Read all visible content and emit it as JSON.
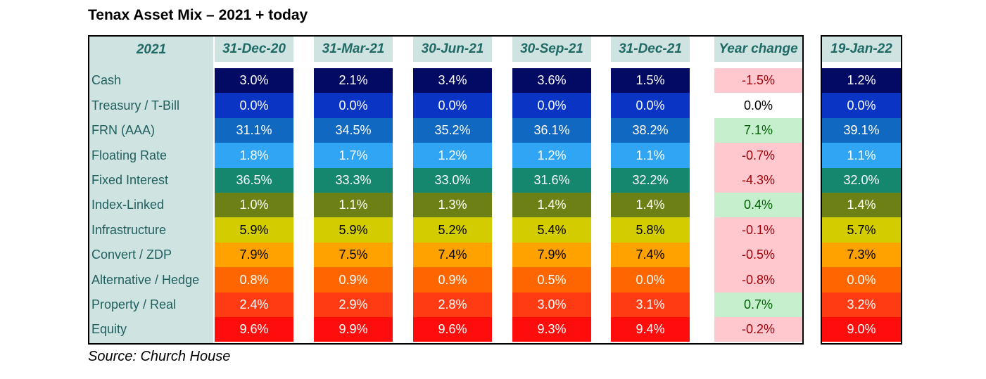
{
  "title": "Tenax Asset Mix – 2021 + today",
  "source": "Source: Church House",
  "year_label": "2021",
  "columns": [
    "31-Dec-20",
    "31-Mar-21",
    "30-Jun-21",
    "30-Sep-21",
    "31-Dec-21"
  ],
  "change_header": "Year change",
  "today_header": "19-Jan-22",
  "rows": [
    {
      "label": "Cash",
      "values": [
        "3.0%",
        "2.1%",
        "3.4%",
        "3.6%",
        "1.5%"
      ],
      "change": "-1.5%",
      "today": "1.2%",
      "color": "#020a63",
      "text_color": "#ffffff",
      "trend": "neg"
    },
    {
      "label": "Treasury / T-Bill",
      "values": [
        "0.0%",
        "0.0%",
        "0.0%",
        "0.0%",
        "0.0%"
      ],
      "change": "0.0%",
      "today": "0.0%",
      "color": "#0a35c4",
      "text_color": "#ffffff",
      "trend": "zero"
    },
    {
      "label": "FRN (AAA)",
      "values": [
        "31.1%",
        "34.5%",
        "35.2%",
        "36.1%",
        "38.2%"
      ],
      "change": "7.1%",
      "today": "39.1%",
      "color": "#1068c0",
      "text_color": "#ffffff",
      "trend": "pos"
    },
    {
      "label": "Floating Rate",
      "values": [
        "1.8%",
        "1.7%",
        "1.2%",
        "1.2%",
        "1.1%"
      ],
      "change": "-0.7%",
      "today": "1.1%",
      "color": "#30a5f4",
      "text_color": "#ffffff",
      "trend": "neg"
    },
    {
      "label": "Fixed Interest",
      "values": [
        "36.5%",
        "33.3%",
        "33.0%",
        "31.6%",
        "32.2%"
      ],
      "change": "-4.3%",
      "today": "32.0%",
      "color": "#14876e",
      "text_color": "#ffffff",
      "trend": "neg"
    },
    {
      "label": "Index-Linked",
      "values": [
        "1.0%",
        "1.1%",
        "1.3%",
        "1.4%",
        "1.4%"
      ],
      "change": "0.4%",
      "today": "1.4%",
      "color": "#6d8015",
      "text_color": "#ffffff",
      "trend": "pos"
    },
    {
      "label": "Infrastructure",
      "values": [
        "5.9%",
        "5.9%",
        "5.2%",
        "5.4%",
        "5.8%"
      ],
      "change": "-0.1%",
      "today": "5.7%",
      "color": "#d2cc00",
      "text_color": "#000000",
      "trend": "neg"
    },
    {
      "label": "Convert / ZDP",
      "values": [
        "7.9%",
        "7.5%",
        "7.4%",
        "7.9%",
        "7.4%"
      ],
      "change": "-0.5%",
      "today": "7.3%",
      "color": "#ffa200",
      "text_color": "#000000",
      "trend": "neg"
    },
    {
      "label": "Alternative / Hedge",
      "values": [
        "0.8%",
        "0.9%",
        "0.9%",
        "0.5%",
        "0.0%"
      ],
      "change": "-0.8%",
      "today": "0.0%",
      "color": "#ff6600",
      "text_color": "#ffffff",
      "trend": "neg"
    },
    {
      "label": "Property / Real",
      "values": [
        "2.4%",
        "2.9%",
        "2.8%",
        "3.0%",
        "3.1%"
      ],
      "change": "0.7%",
      "today": "3.2%",
      "color": "#ff3b14",
      "text_color": "#ffffff",
      "trend": "pos"
    },
    {
      "label": "Equity",
      "values": [
        "9.6%",
        "9.9%",
        "9.6%",
        "9.3%",
        "9.4%"
      ],
      "change": "-0.2%",
      "today": "9.0%",
      "color": "#ff0d0d",
      "text_color": "#ffffff",
      "trend": "neg"
    }
  ],
  "colors": {
    "header_bg": "#cfe3e0",
    "header_text": "#1f6a66",
    "neg_bg": "#ffc7ce",
    "neg_text": "#9c0006",
    "pos_bg": "#c6efce",
    "pos_text": "#006100",
    "zero_bg": "#ffffff",
    "zero_text": "#000000"
  }
}
